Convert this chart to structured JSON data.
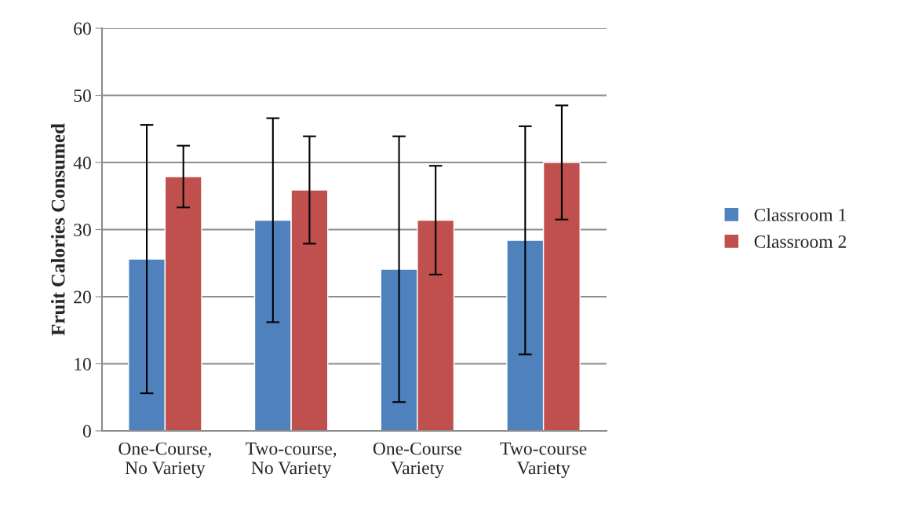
{
  "chart_data": {
    "type": "bar",
    "ylabel": "Fruit Calories Consumed",
    "categories": [
      "One-Course,\nNo Variety",
      "Two-course,\nNo Variety",
      "One-Course\nVariety",
      "Two-course\nVariety"
    ],
    "series": [
      {
        "name": "Classroom 1",
        "color": "#4f81bd",
        "values": [
          25.6,
          31.4,
          24.1,
          28.4
        ],
        "errors": [
          20.0,
          15.2,
          19.8,
          17.0
        ]
      },
      {
        "name": "Classroom 2",
        "color": "#c0504d",
        "values": [
          37.9,
          35.9,
          31.4,
          40.0
        ],
        "errors": [
          4.6,
          8.0,
          8.1,
          8.5
        ]
      }
    ],
    "ylim": [
      0,
      60
    ],
    "yticks": [
      0,
      10,
      20,
      30,
      40,
      50,
      60
    ],
    "grid": "y",
    "legend": "right"
  }
}
